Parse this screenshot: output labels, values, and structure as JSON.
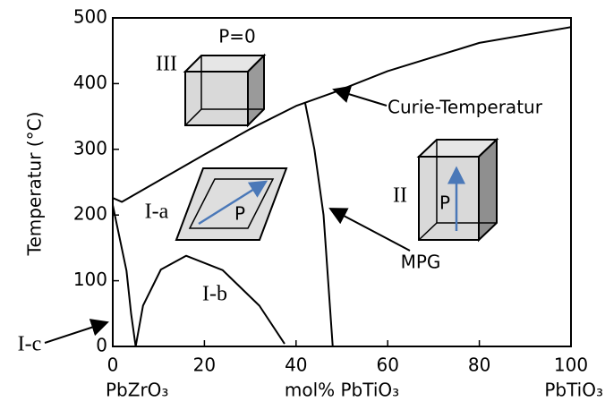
{
  "chart_data": {
    "type": "line",
    "y_label": "Temperatur (°C)",
    "x_label": "mol% PbTiO₃",
    "x_end_labels": [
      "PbZrO₃",
      "PbTiO₃"
    ],
    "xlim": [
      0,
      100
    ],
    "ylim": [
      0,
      500
    ],
    "xticks": [
      0,
      20,
      40,
      60,
      80,
      100
    ],
    "yticks": [
      0,
      100,
      200,
      300,
      400,
      500
    ],
    "series": [
      {
        "color": "#000000",
        "x": [
          0,
          2,
          10,
          20,
          30,
          40,
          48,
          60,
          80,
          100
        ],
        "values": [
          226,
          220,
          252,
          292,
          331,
          366,
          386,
          419,
          462,
          486
        ]
      },
      {
        "color": "#000000",
        "x": [
          42,
          44,
          46,
          47,
          48
        ],
        "values": [
          370,
          300,
          200,
          100,
          0
        ]
      },
      {
        "color": "#000000",
        "x": [
          0,
          3,
          4,
          5
        ],
        "values": [
          215,
          115,
          50,
          0
        ]
      },
      {
        "color": "#000000",
        "x": [
          5,
          6.6,
          10.5,
          16,
          24,
          32,
          37.5
        ],
        "values": [
          0,
          62,
          117,
          138,
          116,
          62,
          4
        ]
      }
    ],
    "annotations": [
      "P=0",
      "III",
      "Curie-Temperatur",
      "I-a",
      "P",
      "II",
      "P",
      "MPG",
      "I-b",
      "I-c"
    ]
  }
}
